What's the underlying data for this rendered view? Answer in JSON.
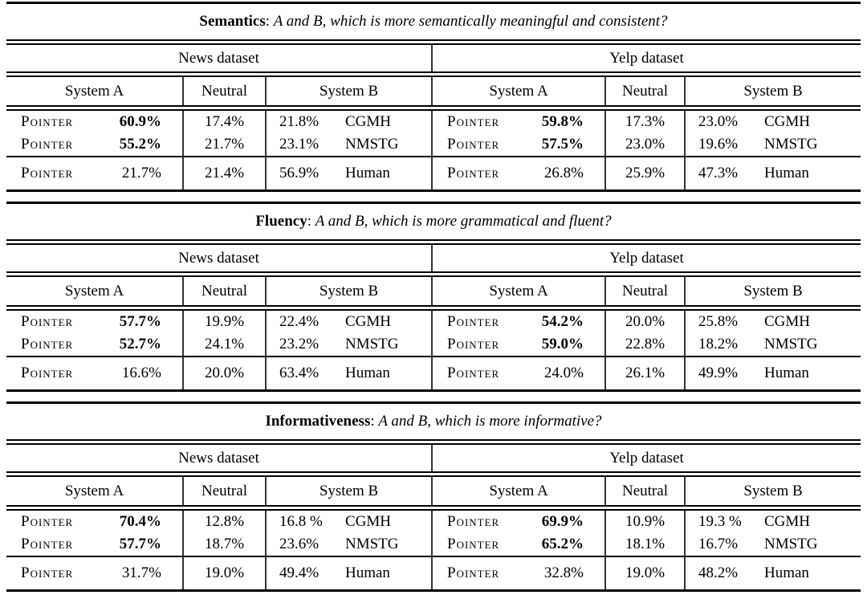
{
  "page": {
    "background": "#ffffff",
    "text_color": "#000000",
    "rule_color": "#000000",
    "bar_color": "#333333"
  },
  "tables": [
    {
      "title_keyword": "Semantics",
      "title_sep": ": ",
      "title_question": "A and B, which is more semantically meaningful and consistent?",
      "halves": [
        {
          "dataset": "News dataset",
          "col_system_a": "System A",
          "col_neutral": "Neutral",
          "col_system_b": "System B",
          "rows": [
            {
              "system": "Pointer",
              "a": "60.9%",
              "n": "17.4%",
              "b": "21.8%",
              "name": "CGMH"
            },
            {
              "system": "Pointer",
              "a": "55.2%",
              "n": "21.7%",
              "b": "23.1%",
              "name": "NMSTG"
            }
          ],
          "human": {
            "system": "Pointer",
            "a": "21.7%",
            "n": "21.4%",
            "b": "56.9%",
            "name": "Human"
          }
        },
        {
          "dataset": "Yelp dataset",
          "col_system_a": "System A",
          "col_neutral": "Neutral",
          "col_system_b": "System B",
          "rows": [
            {
              "system": "Pointer",
              "a": "59.8%",
              "n": "17.3%",
              "b": "23.0%",
              "name": "CGMH"
            },
            {
              "system": "Pointer",
              "a": "57.5%",
              "n": "23.0%",
              "b": "19.6%",
              "name": "NMSTG"
            }
          ],
          "human": {
            "system": "Pointer",
            "a": "26.8%",
            "n": "25.9%",
            "b": "47.3%",
            "name": "Human"
          }
        }
      ]
    },
    {
      "title_keyword": "Fluency",
      "title_sep": ": ",
      "title_question": "A and B, which is more grammatical and fluent?",
      "halves": [
        {
          "dataset": "News dataset",
          "col_system_a": "System A",
          "col_neutral": "Neutral",
          "col_system_b": "System B",
          "rows": [
            {
              "system": "Pointer",
              "a": "57.7%",
              "n": "19.9%",
              "b": "22.4%",
              "name": "CGMH"
            },
            {
              "system": "Pointer",
              "a": "52.7%",
              "n": "24.1%",
              "b": "23.2%",
              "name": "NMSTG"
            }
          ],
          "human": {
            "system": "Pointer",
            "a": "16.6%",
            "n": "20.0%",
            "b": "63.4%",
            "name": "Human"
          }
        },
        {
          "dataset": "Yelp dataset",
          "col_system_a": "System A",
          "col_neutral": "Neutral",
          "col_system_b": "System B",
          "rows": [
            {
              "system": "Pointer",
              "a": "54.2%",
              "n": "20.0%",
              "b": "25.8%",
              "name": "CGMH"
            },
            {
              "system": "Pointer",
              "a": "59.0%",
              "n": "22.8%",
              "b": "18.2%",
              "name": "NMSTG"
            }
          ],
          "human": {
            "system": "Pointer",
            "a": "24.0%",
            "n": "26.1%",
            "b": "49.9%",
            "name": "Human"
          }
        }
      ]
    },
    {
      "title_keyword": "Informativeness",
      "title_sep": ": ",
      "title_question": "A and B, which is more informative?",
      "halves": [
        {
          "dataset": "News dataset",
          "col_system_a": "System A",
          "col_neutral": "Neutral",
          "col_system_b": "System B",
          "rows": [
            {
              "system": "Pointer",
              "a": "70.4%",
              "n": "12.8%",
              "b": "16.8 %",
              "name": "CGMH"
            },
            {
              "system": "Pointer",
              "a": "57.7%",
              "n": "18.7%",
              "b": "23.6%",
              "name": "NMSTG"
            }
          ],
          "human": {
            "system": "Pointer",
            "a": "31.7%",
            "n": "19.0%",
            "b": "49.4%",
            "name": "Human"
          }
        },
        {
          "dataset": "Yelp dataset",
          "col_system_a": "System A",
          "col_neutral": "Neutral",
          "col_system_b": "System B",
          "rows": [
            {
              "system": "Pointer",
              "a": "69.9%",
              "n": "10.9%",
              "b": "19.3 %",
              "name": "CGMH"
            },
            {
              "system": "Pointer",
              "a": "65.2%",
              "n": "18.1%",
              "b": "16.7%",
              "name": "NMSTG"
            }
          ],
          "human": {
            "system": "Pointer",
            "a": "32.8%",
            "n": "19.0%",
            "b": "48.2%",
            "name": "Human"
          }
        }
      ]
    }
  ]
}
